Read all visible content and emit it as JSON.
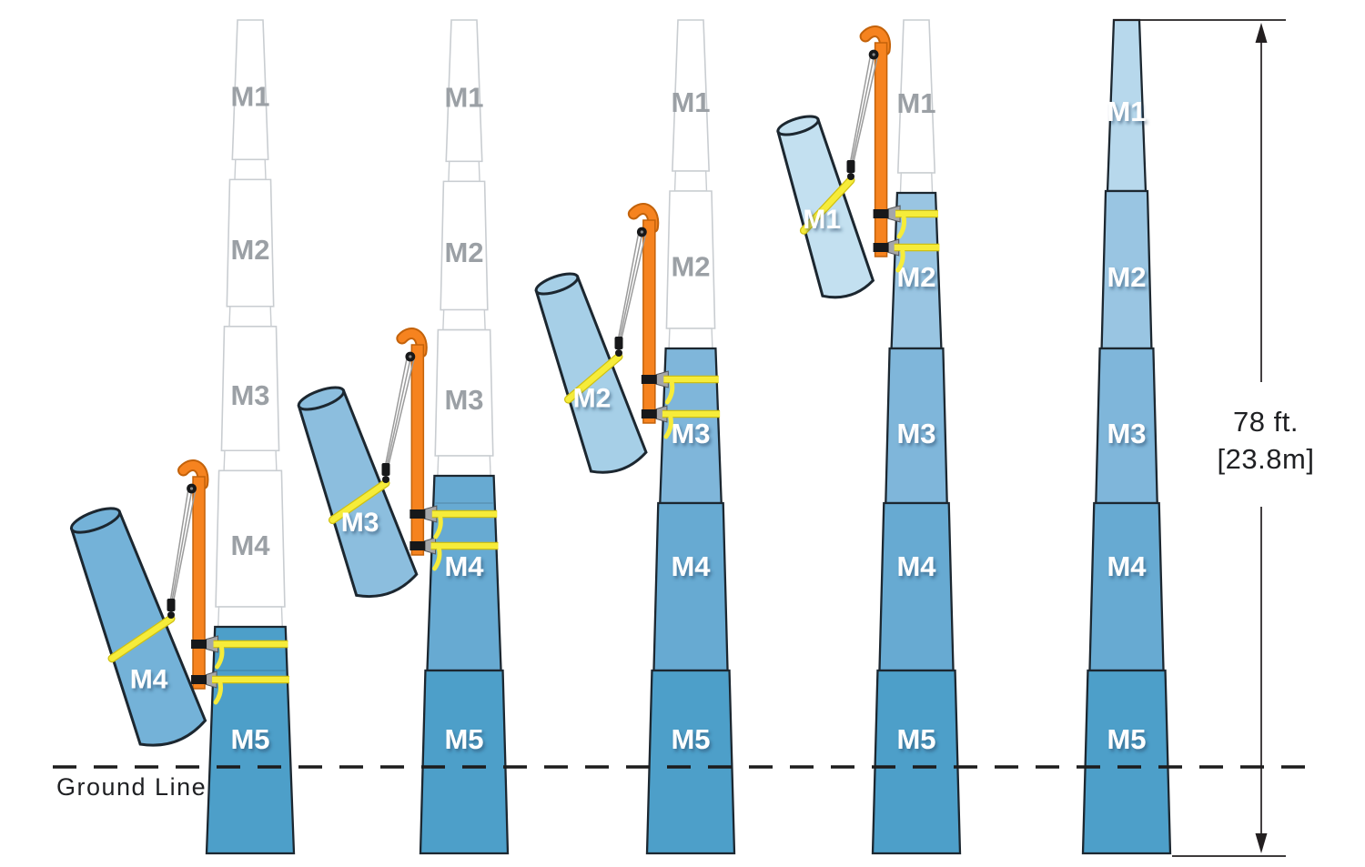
{
  "sections": [
    {
      "id": "M1",
      "label": "M1",
      "fill": "#b7d8ec",
      "lifted_fill": "#c3e0f0"
    },
    {
      "id": "M2",
      "label": "M2",
      "fill": "#99c5e2",
      "lifted_fill": "#a6cfe7"
    },
    {
      "id": "M3",
      "label": "M3",
      "fill": "#7fb6da",
      "lifted_fill": "#8cbede"
    },
    {
      "id": "M4",
      "label": "M4",
      "fill": "#67aad2",
      "lifted_fill": "#74b2d8"
    },
    {
      "id": "M5",
      "label": "M5",
      "fill": "#4d9fc9",
      "lifted_fill": "#5aa6cc"
    }
  ],
  "stages": [
    {
      "name": "stage-1",
      "installed": [
        "M5"
      ],
      "ghost": [
        "M1",
        "M2",
        "M3",
        "M4"
      ],
      "lifted": "M4"
    },
    {
      "name": "stage-2",
      "installed": [
        "M4",
        "M5"
      ],
      "ghost": [
        "M1",
        "M2",
        "M3"
      ],
      "lifted": "M3"
    },
    {
      "name": "stage-3",
      "installed": [
        "M3",
        "M4",
        "M5"
      ],
      "ghost": [
        "M1",
        "M2"
      ],
      "lifted": "M2"
    },
    {
      "name": "stage-4",
      "installed": [
        "M2",
        "M3",
        "M4",
        "M5"
      ],
      "ghost": [
        "M1"
      ],
      "lifted": "M1"
    },
    {
      "name": "stage-5",
      "installed": [
        "M1",
        "M2",
        "M3",
        "M4",
        "M5"
      ],
      "ghost": [],
      "lifted": null
    }
  ],
  "annotations": {
    "ground_line_label": "Ground Line",
    "height_ft": "78 ft.",
    "height_m": "[23.8m]"
  },
  "colors": {
    "ghost_outline": "#c9cdd1",
    "ghost_label": "#9ba0a5",
    "section_outline": "#1c2730",
    "gin_pole": "#f6831f",
    "gin_pole_outline": "#c3620a",
    "sling_yellow": "#f6ec3a",
    "sling_yellow_dark": "#cfc013",
    "cable_gray": "#9a9a9a",
    "bracket_gray": "#a4a6a9",
    "bracket_edge": "#55575b",
    "hardware_black": "#17181a",
    "ink": "#231f20",
    "label_shadow": "#2b4a66"
  }
}
